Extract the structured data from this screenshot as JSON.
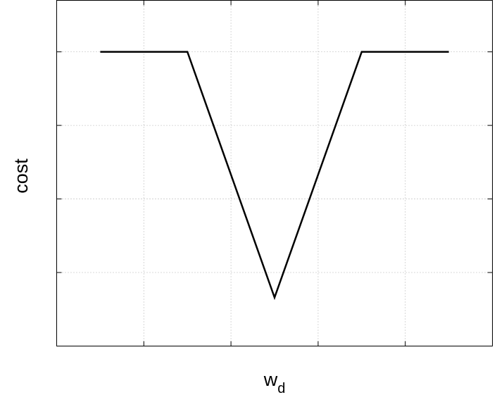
{
  "chart_data": {
    "type": "line",
    "x_label": "w",
    "x_label_subscript": "d",
    "y_label": "cost",
    "x": [
      0.5,
      1.5,
      2.5,
      3.5,
      4.5
    ],
    "values": [
      4,
      4,
      0.66,
      4,
      4
    ],
    "color": "#000000",
    "xlim": [
      0,
      5
    ],
    "xticks": [
      1,
      2,
      3,
      4
    ],
    "ylim": [
      0,
      4.7
    ],
    "yticks": [
      1,
      2,
      3,
      4
    ],
    "grid": true
  }
}
